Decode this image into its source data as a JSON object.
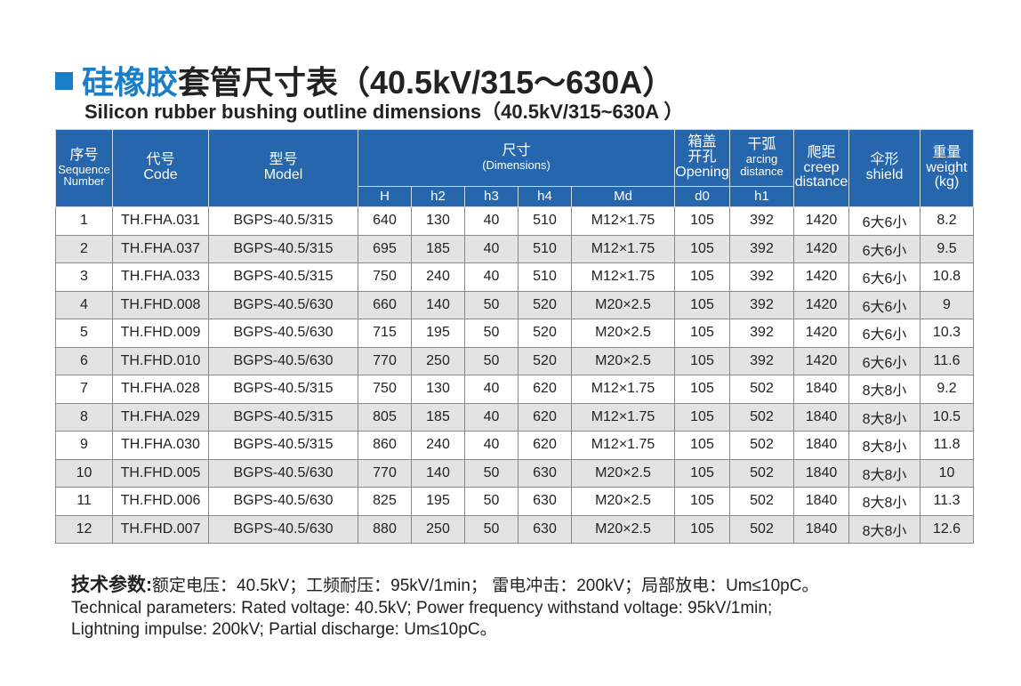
{
  "title_cn_blue": "硅橡胶",
  "title_cn_rest": "套管尺寸表（40.5kV/315～630A）",
  "title_en": "Silicon rubber bushing outline dimensions（40.5kV/315~630A ）",
  "table": {
    "columns_top": [
      {
        "lines": [
          "序号",
          "Sequence",
          "Number"
        ]
      },
      {
        "lines": [
          "代号",
          "Code"
        ]
      },
      {
        "lines": [
          "型号",
          "Model"
        ]
      },
      {
        "lines": [
          "尺寸",
          "(Dimensions)"
        ]
      },
      {
        "lines": [
          "箱盖",
          "开孔",
          "Opening"
        ]
      },
      {
        "lines": [
          "干弧",
          "arcing",
          "distance"
        ]
      },
      {
        "lines": [
          "爬距",
          "creep",
          "distance"
        ]
      },
      {
        "lines": [
          "伞形",
          "shield"
        ]
      },
      {
        "lines": [
          "重量",
          "weight",
          "(kg)"
        ]
      }
    ],
    "columns_sub": [
      "H",
      "h2",
      "h3",
      "h4",
      "Md",
      "d0",
      "h1"
    ],
    "rows": [
      [
        1,
        "TH.FHA.031",
        "BGPS-40.5/315",
        640,
        130,
        40,
        510,
        "M12×1.75",
        105,
        392,
        1420,
        "6大6小",
        8.2
      ],
      [
        2,
        "TH.FHA.037",
        "BGPS-40.5/315",
        695,
        185,
        40,
        510,
        "M12×1.75",
        105,
        392,
        1420,
        "6大6小",
        9.5
      ],
      [
        3,
        "TH.FHA.033",
        "BGPS-40.5/315",
        750,
        240,
        40,
        510,
        "M12×1.75",
        105,
        392,
        1420,
        "6大6小",
        10.8
      ],
      [
        4,
        "TH.FHD.008",
        "BGPS-40.5/630",
        660,
        140,
        50,
        520,
        "M20×2.5",
        105,
        392,
        1420,
        "6大6小",
        9
      ],
      [
        5,
        "TH.FHD.009",
        "BGPS-40.5/630",
        715,
        195,
        50,
        520,
        "M20×2.5",
        105,
        392,
        1420,
        "6大6小",
        10.3
      ],
      [
        6,
        "TH.FHD.010",
        "BGPS-40.5/630",
        770,
        250,
        50,
        520,
        "M20×2.5",
        105,
        392,
        1420,
        "6大6小",
        11.6
      ],
      [
        7,
        "TH.FHA.028",
        "BGPS-40.5/315",
        750,
        130,
        40,
        620,
        "M12×1.75",
        105,
        502,
        1840,
        "8大8小",
        9.2
      ],
      [
        8,
        "TH.FHA.029",
        "BGPS-40.5/315",
        805,
        185,
        40,
        620,
        "M12×1.75",
        105,
        502,
        1840,
        "8大8小",
        10.5
      ],
      [
        9,
        "TH.FHA.030",
        "BGPS-40.5/315",
        860,
        240,
        40,
        620,
        "M12×1.75",
        105,
        502,
        1840,
        "8大8小",
        11.8
      ],
      [
        10,
        "TH.FHD.005",
        "BGPS-40.5/630",
        770,
        140,
        50,
        630,
        "M20×2.5",
        105,
        502,
        1840,
        "8大8小",
        10
      ],
      [
        11,
        "TH.FHD.006",
        "BGPS-40.5/630",
        825,
        195,
        50,
        630,
        "M20×2.5",
        105,
        502,
        1840,
        "8大8小",
        11.3
      ],
      [
        12,
        "TH.FHD.007",
        "BGPS-40.5/630",
        880,
        250,
        50,
        630,
        "M20×2.5",
        105,
        502,
        1840,
        "8大8小",
        12.6
      ]
    ]
  },
  "footer": {
    "label": "技术参数:",
    "cn": "额定电压：40.5kV；工频耐压：95kV/1min； 雷电冲击：200kV；局部放电：Um≤10pC。",
    "en_line1": "Technical parameters: Rated voltage: 40.5kV; Power frequency withstand voltage: 95kV/1min;",
    "en_line2": "Lightning impulse: 200kV; Partial discharge: Um≤10pC。"
  }
}
